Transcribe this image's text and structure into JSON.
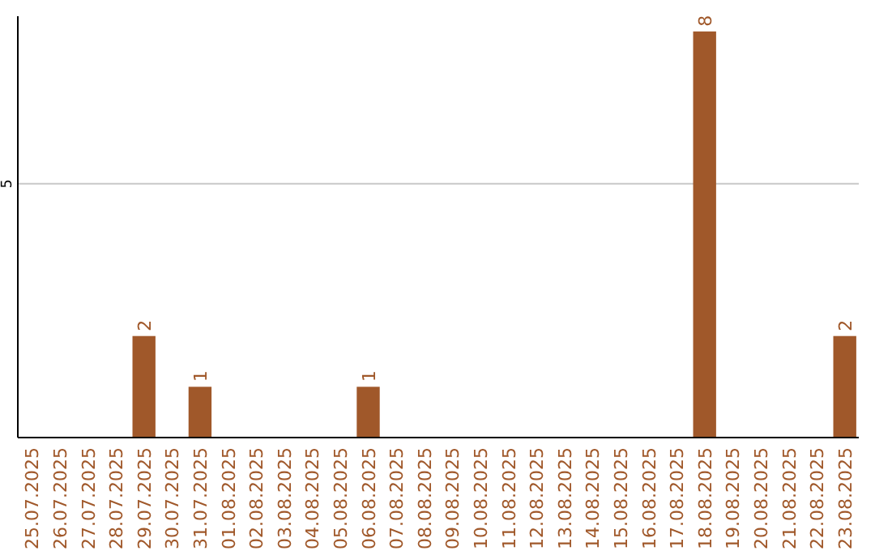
{
  "chart_data": {
    "type": "bar",
    "categories": [
      "25.07.2025",
      "26.07.2025",
      "27.07.2025",
      "28.07.2025",
      "29.07.2025",
      "30.07.2025",
      "31.07.2025",
      "01.08.2025",
      "02.08.2025",
      "03.08.2025",
      "04.08.2025",
      "05.08.2025",
      "06.08.2025",
      "07.08.2025",
      "08.08.2025",
      "09.08.2025",
      "10.08.2025",
      "11.08.2025",
      "12.08.2025",
      "13.08.2025",
      "14.08.2025",
      "15.08.2025",
      "16.08.2025",
      "17.08.2025",
      "18.08.2025",
      "19.08.2025",
      "20.08.2025",
      "21.08.2025",
      "22.08.2025",
      "23.08.2025"
    ],
    "values": [
      0,
      0,
      0,
      0,
      2,
      0,
      1,
      0,
      0,
      0,
      0,
      0,
      1,
      0,
      0,
      0,
      0,
      0,
      0,
      0,
      0,
      0,
      0,
      0,
      8,
      0,
      0,
      0,
      0,
      2
    ],
    "value_labels": [
      null,
      null,
      null,
      null,
      "2",
      null,
      "1",
      null,
      null,
      null,
      null,
      null,
      "1",
      null,
      null,
      null,
      null,
      null,
      null,
      null,
      null,
      null,
      null,
      null,
      "8",
      null,
      null,
      null,
      null,
      "2"
    ],
    "color": "#a0582a",
    "ylim": [
      0,
      8.3
    ],
    "yticks": [
      5
    ],
    "grid": "y"
  }
}
